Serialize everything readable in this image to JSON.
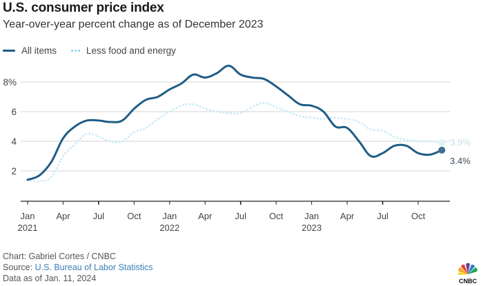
{
  "header": {
    "title": "U.S. consumer price index",
    "subtitle": "Year-over-year percent change as of December 2023"
  },
  "legend": [
    {
      "label": "All items",
      "style": "solid",
      "color": "#1f5c86"
    },
    {
      "label": "Less food and energy",
      "style": "dotted",
      "color": "#5bc3e4"
    }
  ],
  "footer": {
    "credit": "Chart: Gabriel Cortes / CNBC",
    "source_prefix": "Source: ",
    "source_link": "U.S. Bureau of Labor Statistics",
    "date_note": "Data as of Jan. 11, 2024"
  },
  "logo": {
    "name": "CNBC",
    "text": "CNBC"
  },
  "chart_data": {
    "type": "line",
    "title": "U.S. consumer price index",
    "subtitle": "Year-over-year percent change as of December 2023",
    "xlabel": "",
    "ylabel": "",
    "ylim": [
      0,
      9.5
    ],
    "yticks": [
      2,
      4,
      6,
      8
    ],
    "ytick_labels": [
      "2",
      "4",
      "6",
      "8%"
    ],
    "grid": true,
    "legend_position": "top-left",
    "x": [
      "2021-01",
      "2021-02",
      "2021-03",
      "2021-04",
      "2021-05",
      "2021-06",
      "2021-07",
      "2021-08",
      "2021-09",
      "2021-10",
      "2021-11",
      "2021-12",
      "2022-01",
      "2022-02",
      "2022-03",
      "2022-04",
      "2022-05",
      "2022-06",
      "2022-07",
      "2022-08",
      "2022-09",
      "2022-10",
      "2022-11",
      "2022-12",
      "2023-01",
      "2023-02",
      "2023-03",
      "2023-04",
      "2023-05",
      "2023-06",
      "2023-07",
      "2023-08",
      "2023-09",
      "2023-10",
      "2023-11",
      "2023-12"
    ],
    "xticks": [
      {
        "index": 0,
        "label": "Jan",
        "sublabel": "2021"
      },
      {
        "index": 3,
        "label": "Apr",
        "sublabel": ""
      },
      {
        "index": 6,
        "label": "Jul",
        "sublabel": ""
      },
      {
        "index": 9,
        "label": "Oct",
        "sublabel": ""
      },
      {
        "index": 12,
        "label": "Jan",
        "sublabel": "2022"
      },
      {
        "index": 15,
        "label": "Apr",
        "sublabel": ""
      },
      {
        "index": 18,
        "label": "Jul",
        "sublabel": ""
      },
      {
        "index": 21,
        "label": "Oct",
        "sublabel": ""
      },
      {
        "index": 24,
        "label": "Jan",
        "sublabel": "2023"
      },
      {
        "index": 27,
        "label": "Apr",
        "sublabel": ""
      },
      {
        "index": 30,
        "label": "Jul",
        "sublabel": ""
      },
      {
        "index": 33,
        "label": "Oct",
        "sublabel": ""
      }
    ],
    "series": [
      {
        "name": "All items",
        "color": "#1f5c86",
        "style": "solid",
        "end_label": "3.4%",
        "values": [
          1.4,
          1.7,
          2.6,
          4.2,
          5.0,
          5.4,
          5.4,
          5.3,
          5.4,
          6.2,
          6.8,
          7.0,
          7.5,
          7.9,
          8.5,
          8.3,
          8.6,
          9.1,
          8.5,
          8.3,
          8.2,
          7.7,
          7.1,
          6.5,
          6.4,
          6.0,
          5.0,
          4.9,
          4.0,
          3.0,
          3.2,
          3.7,
          3.7,
          3.2,
          3.1,
          3.4
        ]
      },
      {
        "name": "Less food and energy",
        "color": "#c9ecf6",
        "style": "dotted",
        "end_label": "3.9%",
        "values": [
          1.4,
          1.3,
          1.6,
          3.0,
          3.8,
          4.5,
          4.3,
          4.0,
          4.0,
          4.6,
          4.9,
          5.5,
          6.0,
          6.4,
          6.5,
          6.2,
          6.0,
          5.9,
          5.9,
          6.3,
          6.6,
          6.3,
          6.0,
          5.7,
          5.6,
          5.5,
          5.6,
          5.5,
          5.3,
          4.8,
          4.7,
          4.3,
          4.1,
          4.0,
          4.0,
          3.9
        ]
      }
    ]
  }
}
